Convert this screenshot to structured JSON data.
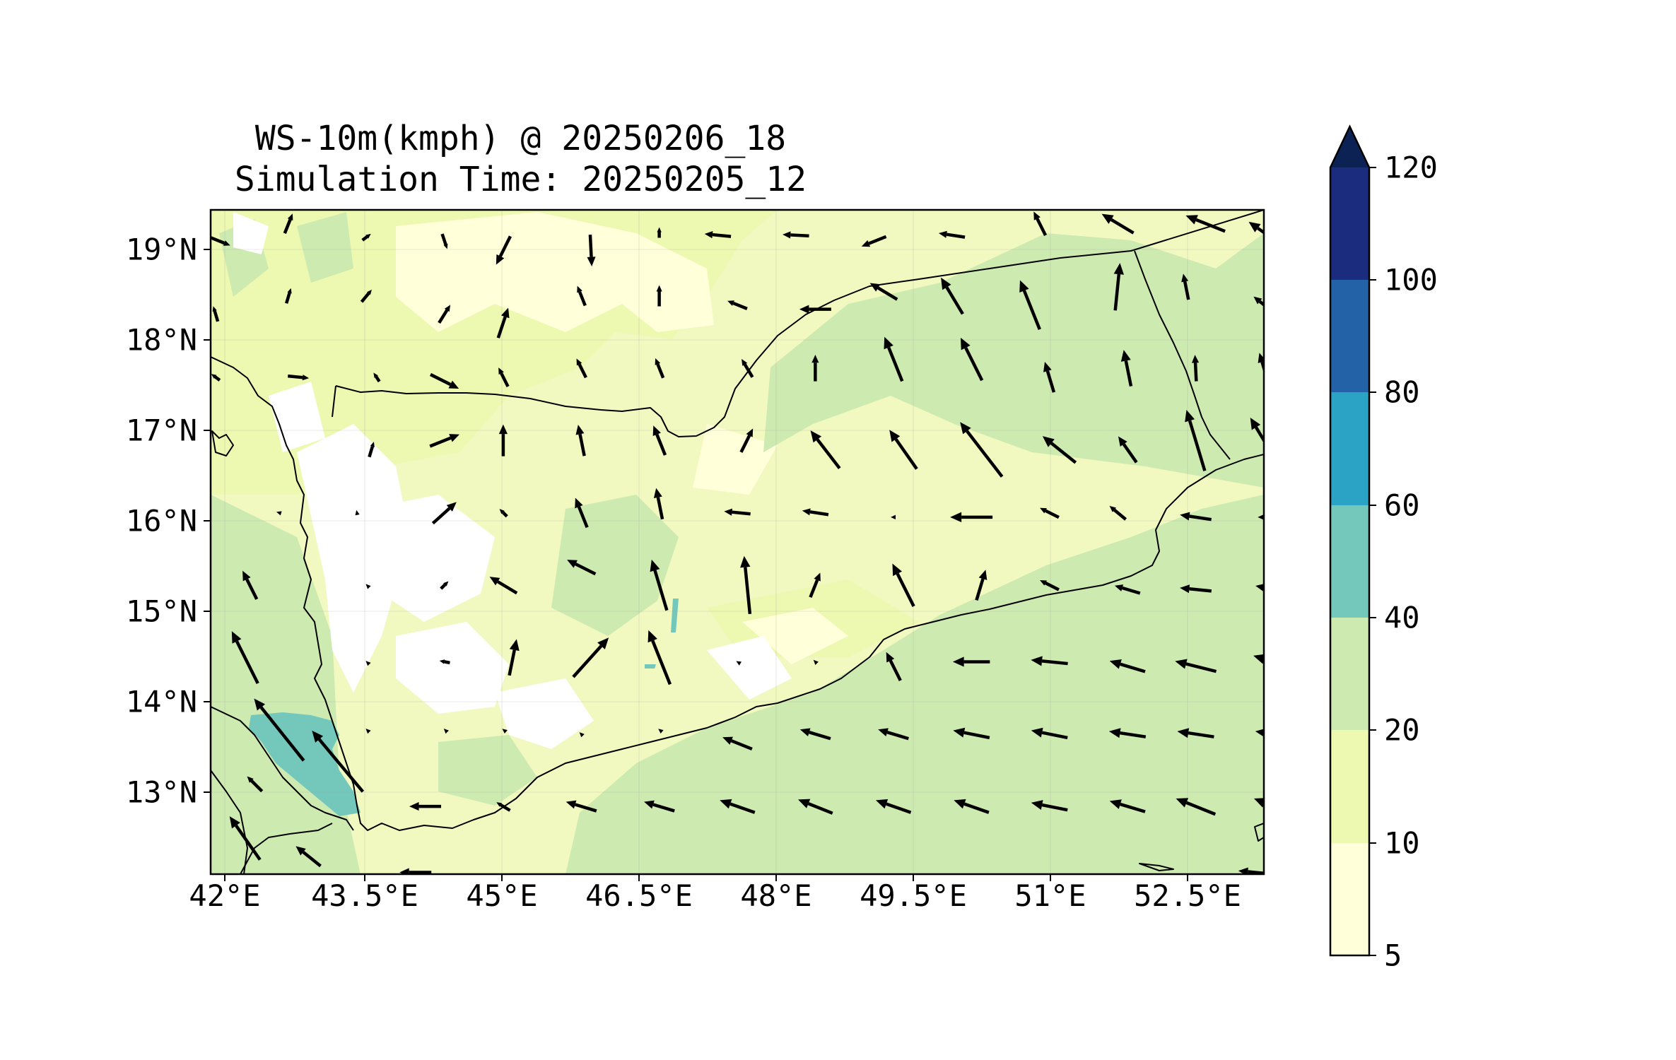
{
  "title": {
    "line1": "WS-10m(kmph) @ 20250206_18",
    "line2": "Simulation Time: 20250205_12"
  },
  "axes": {
    "x_ticks": [
      "42°E",
      "43.5°E",
      "45°E",
      "46.5°E",
      "48°E",
      "49.5°E",
      "51°E",
      "52.5°E"
    ],
    "y_ticks": [
      "13°N",
      "14°N",
      "15°N",
      "16°N",
      "17°N",
      "18°N",
      "19°N"
    ]
  },
  "colorbar": {
    "ticks": [
      "5",
      "10",
      "20",
      "40",
      "60",
      "80",
      "100",
      "120"
    ],
    "colors": [
      "#ffffd9",
      "#edf8b1",
      "#c7e9b4",
      "#7fcdbb",
      "#41b6c4",
      "#1d91c0",
      "#225ea8",
      "#0c2c84"
    ],
    "extend": "max"
  },
  "chart_data": {
    "type": "other",
    "description_of_type": "filled contour map with wind vectors",
    "x_range_lon": [
      42,
      52.8
    ],
    "y_range_lat": [
      12.1,
      19.45
    ],
    "contour_levels": [
      5,
      10,
      20,
      40,
      60,
      80,
      100,
      120
    ],
    "colors": {
      "land_white": "#ffffff",
      "level_5_10": "#ffffd9",
      "level_10_20": "#edf8b1",
      "level_20_40": "#cdeab0",
      "level_40_60": "#74c8bb",
      "arrow": "#000000",
      "coast": "#000000"
    },
    "vectors": [
      {
        "lon": 42.1,
        "lat": 19.1,
        "u": 1,
        "v": -0.4,
        "m": 0.4
      },
      {
        "lon": 42.8,
        "lat": 19.3,
        "u": 0.4,
        "v": 1,
        "m": 0.4
      },
      {
        "lon": 43.6,
        "lat": 19.15,
        "u": 0.4,
        "v": 0.3,
        "m": 0.2
      },
      {
        "lon": 44.4,
        "lat": 19.1,
        "u": 0.3,
        "v": -0.9,
        "m": 0.3
      },
      {
        "lon": 45.0,
        "lat": 19.0,
        "u": -0.5,
        "v": -1,
        "m": 0.6
      },
      {
        "lon": 45.9,
        "lat": 19.0,
        "u": 0.05,
        "v": -1,
        "m": 0.6
      },
      {
        "lon": 46.6,
        "lat": 19.2,
        "u": 0,
        "v": 0.8,
        "m": 0.2
      },
      {
        "lon": 47.2,
        "lat": 19.17,
        "u": -1,
        "v": 0.1,
        "m": 0.5
      },
      {
        "lon": 48.0,
        "lat": 19.17,
        "u": -1,
        "v": 0.05,
        "m": 0.5
      },
      {
        "lon": 48.8,
        "lat": 19.1,
        "u": -1,
        "v": -0.4,
        "m": 0.5
      },
      {
        "lon": 49.6,
        "lat": 19.17,
        "u": -1,
        "v": 0.15,
        "m": 0.5
      },
      {
        "lon": 50.5,
        "lat": 19.3,
        "u": -0.5,
        "v": 1,
        "m": 0.5
      },
      {
        "lon": 51.3,
        "lat": 19.3,
        "u": -1,
        "v": 0.6,
        "m": 0.7
      },
      {
        "lon": 52.2,
        "lat": 19.3,
        "u": -1,
        "v": 0.4,
        "m": 0.8
      },
      {
        "lon": 52.8,
        "lat": 19.2,
        "u": -1,
        "v": 0.7,
        "m": 0.7
      },
      {
        "lon": 42.05,
        "lat": 18.3,
        "u": -0.3,
        "v": 1,
        "m": 0.3
      },
      {
        "lon": 42.8,
        "lat": 18.5,
        "u": 0.3,
        "v": 1,
        "m": 0.3
      },
      {
        "lon": 43.6,
        "lat": 18.5,
        "u": 0.5,
        "v": 0.6,
        "m": 0.3
      },
      {
        "lon": 44.4,
        "lat": 18.3,
        "u": 0.5,
        "v": 0.8,
        "m": 0.4
      },
      {
        "lon": 45.0,
        "lat": 18.2,
        "u": 0.3,
        "v": 0.9,
        "m": 0.6
      },
      {
        "lon": 45.8,
        "lat": 18.5,
        "u": -0.4,
        "v": 1,
        "m": 0.4
      },
      {
        "lon": 46.6,
        "lat": 18.5,
        "u": 0,
        "v": 1,
        "m": 0.4
      },
      {
        "lon": 47.4,
        "lat": 18.4,
        "u": -1,
        "v": 0.4,
        "m": 0.4
      },
      {
        "lon": 48.2,
        "lat": 18.35,
        "u": -1,
        "v": 0,
        "m": 0.6
      },
      {
        "lon": 48.9,
        "lat": 18.55,
        "u": -1,
        "v": 0.6,
        "m": 0.6
      },
      {
        "lon": 49.6,
        "lat": 18.5,
        "u": -0.6,
        "v": 1,
        "m": 0.8
      },
      {
        "lon": 50.4,
        "lat": 18.4,
        "u": -0.4,
        "v": 1,
        "m": 1.0
      },
      {
        "lon": 51.3,
        "lat": 18.6,
        "u": 0.1,
        "v": 1,
        "m": 0.9
      },
      {
        "lon": 52.0,
        "lat": 18.6,
        "u": -0.2,
        "v": 1,
        "m": 0.5
      },
      {
        "lon": 52.8,
        "lat": 18.4,
        "u": -1,
        "v": 0.8,
        "m": 0.5
      },
      {
        "lon": 42.05,
        "lat": 17.6,
        "u": -0.4,
        "v": 0.3,
        "m": 0.2
      },
      {
        "lon": 42.9,
        "lat": 17.6,
        "u": 1,
        "v": -0.1,
        "m": 0.4
      },
      {
        "lon": 43.7,
        "lat": 17.6,
        "u": -0.4,
        "v": 0.6,
        "m": 0.2
      },
      {
        "lon": 44.4,
        "lat": 17.55,
        "u": 1,
        "v": -0.5,
        "m": 0.6
      },
      {
        "lon": 45.0,
        "lat": 17.6,
        "u": -0.5,
        "v": 1,
        "m": 0.4
      },
      {
        "lon": 45.8,
        "lat": 17.7,
        "u": -0.5,
        "v": 1,
        "m": 0.4
      },
      {
        "lon": 46.6,
        "lat": 17.7,
        "u": -0.4,
        "v": 1,
        "m": 0.4
      },
      {
        "lon": 47.5,
        "lat": 17.7,
        "u": -0.6,
        "v": 1,
        "m": 0.4
      },
      {
        "lon": 48.2,
        "lat": 17.7,
        "u": 0,
        "v": 1,
        "m": 0.5
      },
      {
        "lon": 49.0,
        "lat": 17.8,
        "u": -0.4,
        "v": 1,
        "m": 0.9
      },
      {
        "lon": 49.8,
        "lat": 17.8,
        "u": -0.5,
        "v": 1,
        "m": 0.9
      },
      {
        "lon": 50.6,
        "lat": 17.6,
        "u": -0.3,
        "v": 1,
        "m": 0.6
      },
      {
        "lon": 51.4,
        "lat": 17.7,
        "u": -0.2,
        "v": 1,
        "m": 0.7
      },
      {
        "lon": 52.1,
        "lat": 17.7,
        "u": -0.05,
        "v": 1,
        "m": 0.5
      },
      {
        "lon": 52.8,
        "lat": 17.7,
        "u": -0.3,
        "v": 1,
        "m": 0.6
      },
      {
        "lon": 43.65,
        "lat": 16.8,
        "u": 0.3,
        "v": 1,
        "m": 0.3
      },
      {
        "lon": 44.4,
        "lat": 16.9,
        "u": 1,
        "v": 0.4,
        "m": 0.6
      },
      {
        "lon": 45.0,
        "lat": 16.9,
        "u": 0,
        "v": 1,
        "m": 0.6
      },
      {
        "lon": 45.8,
        "lat": 16.9,
        "u": -0.2,
        "v": 1,
        "m": 0.6
      },
      {
        "lon": 46.6,
        "lat": 16.9,
        "u": -0.4,
        "v": 1,
        "m": 0.6
      },
      {
        "lon": 47.5,
        "lat": 16.9,
        "u": 0.5,
        "v": 1,
        "m": 0.5
      },
      {
        "lon": 48.3,
        "lat": 16.8,
        "u": -1,
        "v": 1.3,
        "m": 0.9
      },
      {
        "lon": 49.1,
        "lat": 16.8,
        "u": -0.7,
        "v": 1,
        "m": 0.9
      },
      {
        "lon": 49.9,
        "lat": 16.8,
        "u": -1,
        "v": 1.3,
        "m": 1.3
      },
      {
        "lon": 50.7,
        "lat": 16.8,
        "u": -1,
        "v": 0.8,
        "m": 0.8
      },
      {
        "lon": 51.4,
        "lat": 16.8,
        "u": -0.7,
        "v": 1,
        "m": 0.6
      },
      {
        "lon": 52.1,
        "lat": 16.9,
        "u": -0.3,
        "v": 1,
        "m": 1.2
      },
      {
        "lon": 52.8,
        "lat": 16.9,
        "u": -0.6,
        "v": 1,
        "m": 1.0
      },
      {
        "lon": 42.7,
        "lat": 16.1,
        "u": -1,
        "v": 0.3,
        "m": 0.1
      },
      {
        "lon": 43.5,
        "lat": 16.1,
        "u": -0.2,
        "v": 1,
        "m": 0.1
      },
      {
        "lon": 44.4,
        "lat": 16.1,
        "u": 1,
        "v": 0.9,
        "m": 0.6
      },
      {
        "lon": 45.0,
        "lat": 16.1,
        "u": -0.5,
        "v": 0.5,
        "m": 0.2
      },
      {
        "lon": 45.8,
        "lat": 16.1,
        "u": -0.4,
        "v": 1,
        "m": 0.6
      },
      {
        "lon": 46.6,
        "lat": 16.2,
        "u": -0.2,
        "v": 1,
        "m": 0.6
      },
      {
        "lon": 47.4,
        "lat": 16.1,
        "u": -1,
        "v": 0.1,
        "m": 0.5
      },
      {
        "lon": 48.2,
        "lat": 16.1,
        "u": -1,
        "v": 0.15,
        "m": 0.5
      },
      {
        "lon": 49.0,
        "lat": 16.05,
        "u": -1,
        "v": 0,
        "m": 0.1
      },
      {
        "lon": 49.8,
        "lat": 16.05,
        "u": -1,
        "v": 0,
        "m": 0.8
      },
      {
        "lon": 50.6,
        "lat": 16.1,
        "u": -1,
        "v": 0.5,
        "m": 0.4
      },
      {
        "lon": 51.3,
        "lat": 16.1,
        "u": -0.6,
        "v": 0.5,
        "m": 0.4
      },
      {
        "lon": 52.1,
        "lat": 16.05,
        "u": -1,
        "v": 0.15,
        "m": 0.6
      },
      {
        "lon": 52.9,
        "lat": 16.05,
        "u": -1,
        "v": 0,
        "m": 0.6
      },
      {
        "lon": 42.4,
        "lat": 15.3,
        "u": -0.5,
        "v": 1,
        "m": 0.6
      },
      {
        "lon": 43.6,
        "lat": 15.3,
        "u": -0.5,
        "v": 0.5,
        "m": 0.05
      },
      {
        "lon": 44.4,
        "lat": 15.3,
        "u": 0.5,
        "v": 0.5,
        "m": 0.2
      },
      {
        "lon": 45.0,
        "lat": 15.3,
        "u": -1,
        "v": 0.6,
        "m": 0.6
      },
      {
        "lon": 45.8,
        "lat": 15.5,
        "u": -1,
        "v": 0.5,
        "m": 0.6
      },
      {
        "lon": 46.6,
        "lat": 15.3,
        "u": -0.3,
        "v": 1,
        "m": 1.0
      },
      {
        "lon": 47.5,
        "lat": 15.3,
        "u": -0.1,
        "v": 1,
        "m": 1.1
      },
      {
        "lon": 48.2,
        "lat": 15.3,
        "u": 0.4,
        "v": 1,
        "m": 0.5
      },
      {
        "lon": 49.1,
        "lat": 15.3,
        "u": -0.5,
        "v": 1,
        "m": 0.9
      },
      {
        "lon": 49.9,
        "lat": 15.3,
        "u": 0.3,
        "v": 1,
        "m": 0.6
      },
      {
        "lon": 50.6,
        "lat": 15.3,
        "u": -1,
        "v": 0.5,
        "m": 0.4
      },
      {
        "lon": 51.4,
        "lat": 15.25,
        "u": -1,
        "v": 0.3,
        "m": 0.5
      },
      {
        "lon": 52.1,
        "lat": 15.25,
        "u": -1,
        "v": 0.1,
        "m": 0.6
      },
      {
        "lon": 52.9,
        "lat": 15.25,
        "u": -1,
        "v": 0.2,
        "m": 0.7
      },
      {
        "lon": 42.35,
        "lat": 14.5,
        "u": -0.5,
        "v": 1,
        "m": 1.1
      },
      {
        "lon": 43.6,
        "lat": 14.45,
        "u": -0.5,
        "v": 0.5,
        "m": 0.05
      },
      {
        "lon": 44.4,
        "lat": 14.45,
        "u": -1,
        "v": 0.2,
        "m": 0.2
      },
      {
        "lon": 45.1,
        "lat": 14.5,
        "u": 0.2,
        "v": 1,
        "m": 0.7
      },
      {
        "lon": 45.9,
        "lat": 14.5,
        "u": 0.9,
        "v": 1,
        "m": 1.0
      },
      {
        "lon": 46.6,
        "lat": 14.5,
        "u": -0.4,
        "v": 1,
        "m": 1.1
      },
      {
        "lon": 47.4,
        "lat": 14.45,
        "u": -0.5,
        "v": 0.3,
        "m": 0.05
      },
      {
        "lon": 48.2,
        "lat": 14.45,
        "u": -0.5,
        "v": 0.5,
        "m": 0.1
      },
      {
        "lon": 49.0,
        "lat": 14.4,
        "u": -0.5,
        "v": 1,
        "m": 0.6
      },
      {
        "lon": 49.8,
        "lat": 14.45,
        "u": -1,
        "v": 0,
        "m": 0.7
      },
      {
        "lon": 50.6,
        "lat": 14.45,
        "u": -1,
        "v": 0.1,
        "m": 0.7
      },
      {
        "lon": 51.4,
        "lat": 14.4,
        "u": -1,
        "v": 0.3,
        "m": 0.7
      },
      {
        "lon": 52.1,
        "lat": 14.4,
        "u": -1,
        "v": 0.25,
        "m": 0.8
      },
      {
        "lon": 52.9,
        "lat": 14.45,
        "u": -1,
        "v": 0.3,
        "m": 0.8
      },
      {
        "lon": 42.7,
        "lat": 13.7,
        "u": -0.8,
        "v": 1,
        "m": 1.5
      },
      {
        "lon": 43.6,
        "lat": 13.7,
        "u": -0.5,
        "v": 0.5,
        "m": 0.05
      },
      {
        "lon": 44.4,
        "lat": 13.7,
        "u": -0.5,
        "v": 0.5,
        "m": 0.05
      },
      {
        "lon": 45.0,
        "lat": 13.7,
        "u": -0.5,
        "v": 0.4,
        "m": 0.05
      },
      {
        "lon": 45.8,
        "lat": 13.65,
        "u": -0.5,
        "v": 0.5,
        "m": 0.1
      },
      {
        "lon": 46.6,
        "lat": 13.7,
        "u": -0.5,
        "v": 0.4,
        "m": 0.05
      },
      {
        "lon": 47.4,
        "lat": 13.55,
        "u": -1,
        "v": 0.4,
        "m": 0.6
      },
      {
        "lon": 48.2,
        "lat": 13.65,
        "u": -1,
        "v": 0.3,
        "m": 0.6
      },
      {
        "lon": 49.0,
        "lat": 13.65,
        "u": -1,
        "v": 0.3,
        "m": 0.6
      },
      {
        "lon": 49.8,
        "lat": 13.65,
        "u": -1,
        "v": 0.2,
        "m": 0.7
      },
      {
        "lon": 50.6,
        "lat": 13.65,
        "u": -1,
        "v": 0.2,
        "m": 0.7
      },
      {
        "lon": 51.4,
        "lat": 13.65,
        "u": -1,
        "v": 0.15,
        "m": 0.7
      },
      {
        "lon": 52.1,
        "lat": 13.65,
        "u": -1,
        "v": 0.15,
        "m": 0.7
      },
      {
        "lon": 52.9,
        "lat": 13.65,
        "u": -1,
        "v": 0.15,
        "m": 0.7
      },
      {
        "lon": 42.45,
        "lat": 13.1,
        "u": -1,
        "v": 1,
        "m": 0.4
      },
      {
        "lon": 43.3,
        "lat": 13.35,
        "u": -1,
        "v": 1.2,
        "m": 1.5
      },
      {
        "lon": 44.2,
        "lat": 12.85,
        "u": -1,
        "v": 0,
        "m": 0.6
      },
      {
        "lon": 45.0,
        "lat": 12.85,
        "u": -1,
        "v": 0.6,
        "m": 0.3
      },
      {
        "lon": 45.8,
        "lat": 12.85,
        "u": -1,
        "v": 0.3,
        "m": 0.6
      },
      {
        "lon": 46.6,
        "lat": 12.85,
        "u": -1,
        "v": 0.3,
        "m": 0.6
      },
      {
        "lon": 47.4,
        "lat": 12.85,
        "u": -1,
        "v": 0.35,
        "m": 0.7
      },
      {
        "lon": 48.2,
        "lat": 12.85,
        "u": -1,
        "v": 0.4,
        "m": 0.7
      },
      {
        "lon": 49.0,
        "lat": 12.85,
        "u": -1,
        "v": 0.35,
        "m": 0.7
      },
      {
        "lon": 49.8,
        "lat": 12.85,
        "u": -1,
        "v": 0.35,
        "m": 0.7
      },
      {
        "lon": 50.6,
        "lat": 12.85,
        "u": -1,
        "v": 0.2,
        "m": 0.7
      },
      {
        "lon": 51.4,
        "lat": 12.85,
        "u": -1,
        "v": 0.3,
        "m": 0.7
      },
      {
        "lon": 52.1,
        "lat": 12.85,
        "u": -1,
        "v": 0.4,
        "m": 0.8
      },
      {
        "lon": 52.9,
        "lat": 12.85,
        "u": -1,
        "v": 0.4,
        "m": 0.8
      },
      {
        "lon": 42.35,
        "lat": 12.5,
        "u": -0.7,
        "v": 1,
        "m": 1.0
      },
      {
        "lon": 43.0,
        "lat": 12.3,
        "u": -1,
        "v": 0.8,
        "m": 0.6
      },
      {
        "lon": 44.1,
        "lat": 12.12,
        "u": -1,
        "v": 0,
        "m": 0.6
      },
      {
        "lon": 52.7,
        "lat": 12.12,
        "u": -1,
        "v": 0.1,
        "m": 0.6
      }
    ]
  }
}
